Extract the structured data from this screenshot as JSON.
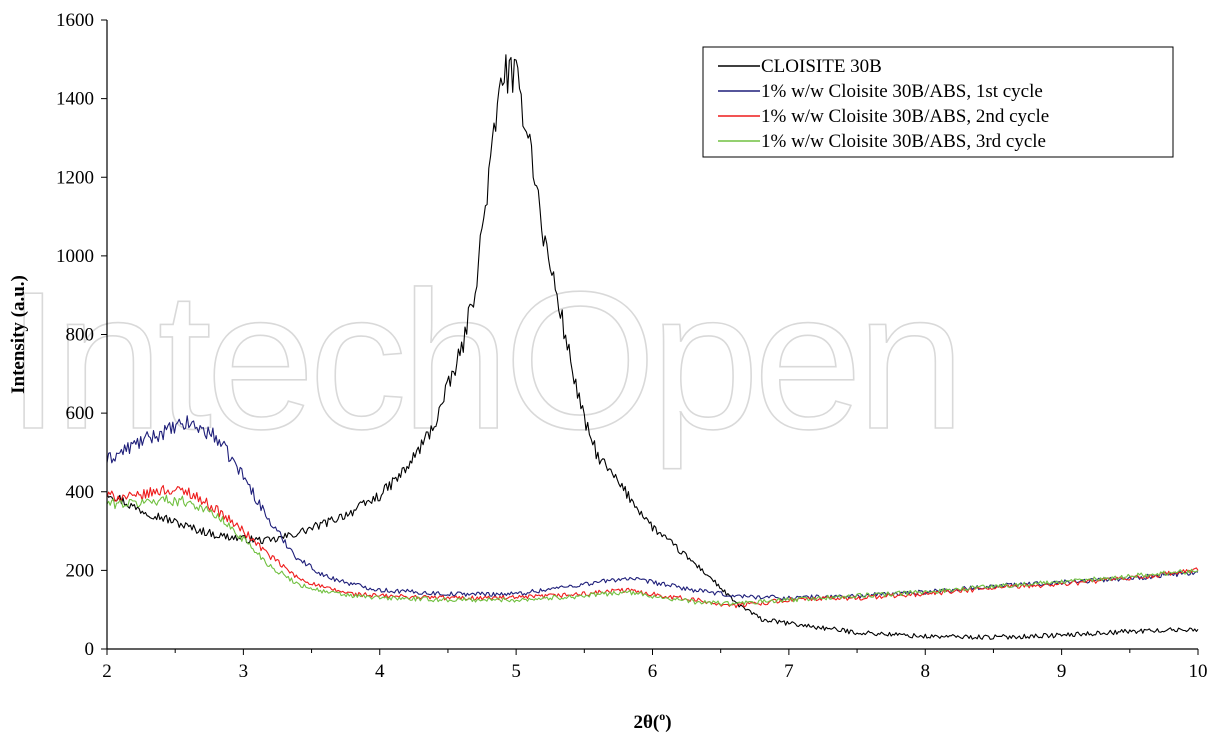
{
  "chart_data": {
    "type": "line",
    "title": "",
    "xlabel": "2θ(°)",
    "xlabel_main": "2θ(",
    "xlabel_sup": "o",
    "xlabel_close": ")",
    "ylabel": "Intensity (a.u.)",
    "xlim": [
      2,
      10
    ],
    "ylim": [
      0,
      1600
    ],
    "x_ticks": [
      "2",
      "3",
      "4",
      "5",
      "6",
      "7",
      "8",
      "9",
      "10"
    ],
    "y_ticks": [
      "0",
      "200",
      "400",
      "600",
      "800",
      "1000",
      "1200",
      "1400",
      "1600"
    ],
    "grid": false,
    "legend_position": "top-right",
    "watermark": "IntechOpen",
    "series": [
      {
        "name": "CLOISITE 30B",
        "color": "#000000",
        "points": [
          [
            2.0,
            400
          ],
          [
            2.2,
            360
          ],
          [
            2.4,
            335
          ],
          [
            2.6,
            310
          ],
          [
            2.8,
            290
          ],
          [
            3.0,
            280
          ],
          [
            3.2,
            275
          ],
          [
            3.4,
            295
          ],
          [
            3.6,
            320
          ],
          [
            3.8,
            350
          ],
          [
            4.0,
            390
          ],
          [
            4.2,
            460
          ],
          [
            4.4,
            570
          ],
          [
            4.6,
            760
          ],
          [
            4.7,
            920
          ],
          [
            4.8,
            1200
          ],
          [
            4.9,
            1470
          ],
          [
            5.0,
            1450
          ],
          [
            5.1,
            1300
          ],
          [
            5.2,
            1050
          ],
          [
            5.3,
            900
          ],
          [
            5.4,
            730
          ],
          [
            5.5,
            580
          ],
          [
            5.6,
            490
          ],
          [
            5.8,
            400
          ],
          [
            6.0,
            310
          ],
          [
            6.2,
            250
          ],
          [
            6.4,
            190
          ],
          [
            6.6,
            120
          ],
          [
            6.8,
            75
          ],
          [
            7.0,
            65
          ],
          [
            7.5,
            42
          ],
          [
            8.0,
            32
          ],
          [
            8.5,
            30
          ],
          [
            9.0,
            35
          ],
          [
            9.5,
            45
          ],
          [
            10.0,
            50
          ]
        ]
      },
      {
        "name": "1% w/w Cloisite 30B/ABS, 1st cycle",
        "color": "#1f1f7a",
        "points": [
          [
            2.0,
            480
          ],
          [
            2.2,
            520
          ],
          [
            2.4,
            550
          ],
          [
            2.6,
            575
          ],
          [
            2.8,
            540
          ],
          [
            3.0,
            440
          ],
          [
            3.2,
            320
          ],
          [
            3.4,
            230
          ],
          [
            3.6,
            185
          ],
          [
            3.8,
            165
          ],
          [
            4.0,
            150
          ],
          [
            4.5,
            140
          ],
          [
            5.0,
            140
          ],
          [
            5.5,
            165
          ],
          [
            5.8,
            180
          ],
          [
            6.0,
            170
          ],
          [
            6.3,
            150
          ],
          [
            6.6,
            135
          ],
          [
            7.0,
            130
          ],
          [
            7.5,
            135
          ],
          [
            8.0,
            145
          ],
          [
            8.5,
            160
          ],
          [
            9.0,
            170
          ],
          [
            9.5,
            180
          ],
          [
            10.0,
            195
          ]
        ]
      },
      {
        "name": "1% w/w Cloisite 30B/ABS, 2nd cycle",
        "color": "#ee1c1c",
        "points": [
          [
            2.0,
            390
          ],
          [
            2.2,
            385
          ],
          [
            2.4,
            405
          ],
          [
            2.6,
            400
          ],
          [
            2.8,
            355
          ],
          [
            3.0,
            300
          ],
          [
            3.2,
            235
          ],
          [
            3.4,
            180
          ],
          [
            3.6,
            155
          ],
          [
            3.8,
            140
          ],
          [
            4.0,
            135
          ],
          [
            4.5,
            130
          ],
          [
            5.0,
            130
          ],
          [
            5.5,
            140
          ],
          [
            5.8,
            150
          ],
          [
            6.0,
            140
          ],
          [
            6.3,
            125
          ],
          [
            6.6,
            110
          ],
          [
            7.0,
            125
          ],
          [
            7.5,
            130
          ],
          [
            8.0,
            140
          ],
          [
            8.5,
            155
          ],
          [
            9.0,
            165
          ],
          [
            9.5,
            180
          ],
          [
            10.0,
            200
          ]
        ]
      },
      {
        "name": "1% w/w Cloisite 30B/ABS, 3rd cycle",
        "color": "#70c040",
        "points": [
          [
            2.0,
            370
          ],
          [
            2.2,
            370
          ],
          [
            2.4,
            380
          ],
          [
            2.6,
            375
          ],
          [
            2.8,
            340
          ],
          [
            3.0,
            280
          ],
          [
            3.2,
            210
          ],
          [
            3.4,
            165
          ],
          [
            3.6,
            145
          ],
          [
            3.8,
            135
          ],
          [
            4.0,
            130
          ],
          [
            4.5,
            125
          ],
          [
            5.0,
            125
          ],
          [
            5.5,
            135
          ],
          [
            5.8,
            145
          ],
          [
            6.0,
            135
          ],
          [
            6.3,
            120
          ],
          [
            6.6,
            115
          ],
          [
            7.0,
            125
          ],
          [
            7.5,
            135
          ],
          [
            8.0,
            145
          ],
          [
            8.5,
            160
          ],
          [
            9.0,
            170
          ],
          [
            9.5,
            185
          ],
          [
            10.0,
            200
          ]
        ]
      }
    ]
  }
}
